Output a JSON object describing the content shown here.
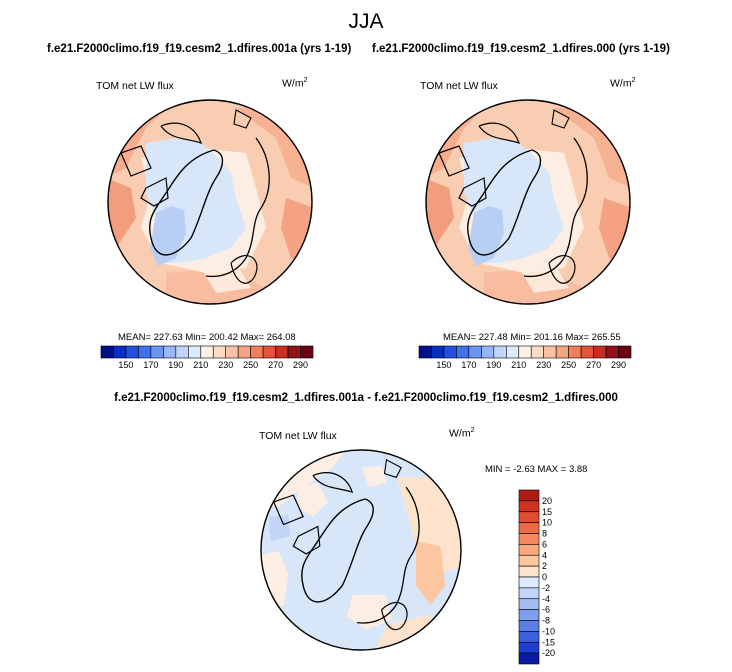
{
  "page_title": "JJA",
  "panels": [
    {
      "title": "f.e21.F2000climo.f19_f19.cesm2_1.dfires.001a (yrs 1-19)",
      "field_label": "TOM net LW flux",
      "units_base": "W/m",
      "units_exp": "2",
      "stats": "MEAN= 227.63  Min= 200.42  Max= 264.08"
    },
    {
      "title": "f.e21.F2000climo.f19_f19.cesm2_1.dfires.000 (yrs 1-19)",
      "field_label": "TOM net LW flux",
      "units_base": "W/m",
      "units_exp": "2",
      "stats": "MEAN= 227.48  Min= 201.16  Max= 265.55"
    }
  ],
  "difference": {
    "title": "f.e21.F2000climo.f19_f19.cesm2_1.dfires.001a - f.e21.F2000climo.f19_f19.cesm2_1.dfires.000",
    "field_label": "TOM net LW flux",
    "units_base": "W/m",
    "units_exp": "2",
    "stats": "MIN =  -2.63 MAX =   3.88"
  },
  "chart_data": [
    {
      "type": "heatmap",
      "projection": "north-polar-stereographic",
      "title": "f.e21.F2000climo.f19_f19.cesm2_1.dfires.001a (yrs 1-19)",
      "variable": "TOM net LW flux",
      "units": "W/m2",
      "mean": 227.63,
      "min": 200.42,
      "max": 264.08,
      "colorbar": {
        "orientation": "horizontal",
        "levels": [
          140,
          150,
          160,
          170,
          180,
          190,
          200,
          210,
          220,
          230,
          240,
          250,
          260,
          270,
          280,
          290
        ],
        "tick_labels": [
          "150",
          "170",
          "190",
          "210",
          "230",
          "250",
          "270",
          "290"
        ],
        "colors": [
          "#000f8a",
          "#0a2ec2",
          "#2150e0",
          "#3f72ee",
          "#6b93f2",
          "#98b6f6",
          "#c1d4fa",
          "#dde9fc",
          "#fdf0e6",
          "#fcdcc7",
          "#fac2a6",
          "#f7a382",
          "#f27e5e",
          "#e4543d",
          "#c62d23",
          "#94101a",
          "#6b0012"
        ]
      }
    },
    {
      "type": "heatmap",
      "projection": "north-polar-stereographic",
      "title": "f.e21.F2000climo.f19_f19.cesm2_1.dfires.000 (yrs 1-19)",
      "variable": "TOM net LW flux",
      "units": "W/m2",
      "mean": 227.48,
      "min": 201.16,
      "max": 265.55,
      "colorbar": {
        "orientation": "horizontal",
        "levels": [
          140,
          150,
          160,
          170,
          180,
          190,
          200,
          210,
          220,
          230,
          240,
          250,
          260,
          270,
          280,
          290
        ],
        "tick_labels": [
          "150",
          "170",
          "190",
          "210",
          "230",
          "250",
          "270",
          "290"
        ],
        "colors": [
          "#000f8a",
          "#0a2ec2",
          "#2150e0",
          "#3f72ee",
          "#6b93f2",
          "#98b6f6",
          "#c1d4fa",
          "#dde9fc",
          "#fdf0e6",
          "#fcdcc7",
          "#fac2a6",
          "#f7a382",
          "#f27e5e",
          "#e4543d",
          "#c62d23",
          "#94101a",
          "#6b0012"
        ]
      }
    },
    {
      "type": "heatmap",
      "projection": "north-polar-stereographic",
      "title": "f.e21.F2000climo.f19_f19.cesm2_1.dfires.001a - f.e21.F2000climo.f19_f19.cesm2_1.dfires.000",
      "variable": "TOM net LW flux",
      "units": "W/m2",
      "min": -2.63,
      "max": 3.88,
      "colorbar": {
        "orientation": "vertical",
        "tick_labels": [
          "20",
          "15",
          "10",
          "8",
          "6",
          "4",
          "2",
          "0",
          "-2",
          "-4",
          "-6",
          "-8",
          "-10",
          "-15",
          "-20"
        ],
        "colors": [
          "#b01a14",
          "#d0321f",
          "#e24c2f",
          "#ee6a44",
          "#f5895d",
          "#f9a97d",
          "#fbc6a0",
          "#fde2cc",
          "#dde9fc",
          "#c3d5f8",
          "#a3bdf4",
          "#7d9fee",
          "#5a80e8",
          "#3a5fdf",
          "#1e3ed0",
          "#0a1ba8"
        ]
      }
    }
  ]
}
